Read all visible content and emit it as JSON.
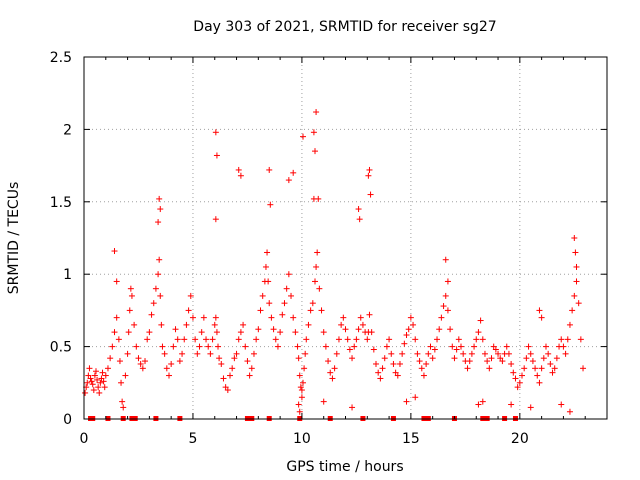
{
  "chart_data": {
    "type": "scatter",
    "title": "Day 303 of 2021, SRMTID for receiver sg27",
    "xlabel": "GPS time / hours",
    "ylabel": "SRMTID / TECUs",
    "xlim": [
      0,
      24
    ],
    "ylim": [
      0,
      2.5
    ],
    "xticks": [
      0,
      5,
      10,
      15,
      20
    ],
    "xtick_labels": [
      "0",
      "5",
      "10",
      "15",
      "20"
    ],
    "yticks": [
      0,
      0.5,
      1,
      1.5,
      2,
      2.5
    ],
    "ytick_labels": [
      "0",
      "0.5",
      "1",
      "1.5",
      "2",
      "2.5"
    ],
    "grid": true,
    "marker": "plus",
    "color": "#ff0000",
    "series": [
      {
        "name": "SRMTID",
        "x": [
          0.05,
          0.1,
          0.15,
          0.2,
          0.25,
          0.3,
          0.35,
          0.4,
          0.45,
          0.5,
          0.55,
          0.6,
          0.65,
          0.7,
          0.75,
          0.8,
          0.85,
          0.9,
          0.95,
          1.0,
          1.1,
          1.2,
          1.3,
          1.4,
          1.5,
          1.6,
          1.65,
          1.7,
          1.75,
          1.8,
          1.9,
          2.0,
          2.05,
          2.1,
          2.15,
          2.2,
          2.3,
          2.4,
          2.5,
          2.6,
          2.7,
          2.8,
          2.9,
          3.0,
          3.1,
          3.2,
          3.3,
          3.4,
          3.45,
          3.5,
          3.55,
          3.6,
          3.7,
          3.8,
          3.9,
          4.0,
          4.1,
          4.2,
          4.3,
          4.4,
          4.5,
          4.6,
          4.7,
          4.8,
          4.9,
          5.0,
          5.1,
          5.2,
          5.3,
          5.4,
          5.5,
          5.6,
          5.7,
          5.8,
          5.9,
          6.0,
          6.05,
          6.1,
          6.15,
          6.2,
          6.3,
          6.4,
          6.5,
          6.6,
          6.7,
          6.8,
          6.9,
          7.0,
          7.1,
          7.2,
          7.3,
          7.4,
          7.5,
          7.6,
          7.7,
          7.8,
          7.9,
          8.0,
          8.1,
          8.2,
          8.3,
          8.35,
          8.4,
          8.45,
          8.5,
          8.6,
          8.7,
          8.8,
          8.9,
          9.0,
          9.1,
          9.2,
          9.3,
          9.4,
          9.5,
          9.6,
          9.7,
          9.8,
          9.85,
          9.9,
          9.95,
          10.0,
          10.05,
          10.1,
          10.15,
          10.2,
          10.3,
          10.4,
          10.5,
          10.6,
          10.65,
          10.7,
          10.8,
          10.9,
          11.0,
          11.1,
          11.2,
          11.3,
          11.4,
          11.5,
          11.6,
          11.7,
          11.8,
          11.9,
          12.0,
          12.1,
          12.2,
          12.3,
          12.4,
          12.5,
          12.6,
          12.7,
          12.8,
          12.9,
          13.0,
          13.05,
          13.1,
          13.2,
          13.3,
          13.4,
          13.5,
          13.6,
          13.7,
          13.8,
          13.9,
          14.0,
          14.1,
          14.2,
          14.3,
          14.4,
          14.5,
          14.6,
          14.7,
          14.8,
          14.9,
          15.0,
          15.1,
          15.2,
          15.3,
          15.4,
          15.5,
          15.6,
          15.7,
          15.8,
          15.9,
          16.0,
          16.1,
          16.2,
          16.3,
          16.4,
          16.5,
          16.6,
          16.7,
          16.8,
          16.9,
          17.0,
          17.1,
          17.2,
          17.3,
          17.4,
          17.5,
          17.6,
          17.7,
          17.8,
          17.9,
          18.0,
          18.1,
          18.2,
          18.3,
          18.4,
          18.5,
          18.6,
          18.7,
          18.8,
          18.9,
          19.0,
          19.1,
          19.2,
          19.3,
          19.4,
          19.5,
          19.6,
          19.7,
          19.8,
          19.9,
          20.0,
          20.1,
          20.2,
          20.3,
          20.4,
          20.5,
          20.6,
          20.7,
          20.8,
          20.9,
          21.0,
          21.1,
          21.2,
          21.3,
          21.4,
          21.5,
          21.6,
          21.7,
          21.8,
          21.9,
          22.0,
          22.1,
          22.2,
          22.3,
          22.4,
          22.5,
          22.6,
          22.7,
          22.8,
          22.9,
          6.05,
          6.1,
          6.05,
          10.05,
          10.55,
          10.6,
          10.55,
          10.65,
          10.75,
          13.05,
          13.1,
          13.15,
          12.6,
          12.65,
          3.45,
          3.5,
          3.4,
          7.1,
          7.2,
          8.5,
          8.55,
          9.4,
          9.6,
          16.6,
          16.7,
          22.5,
          22.55,
          22.6,
          1.4,
          1.5,
          20.9,
          21.0,
          9.85,
          9.9,
          10.0,
          11.0,
          12.3,
          14.8,
          15.2,
          18.1,
          18.3,
          19.6,
          20.5,
          21.9,
          22.3
        ],
        "y": [
          0.18,
          0.22,
          0.25,
          0.3,
          0.35,
          0.28,
          0.26,
          0.24,
          0.2,
          0.3,
          0.33,
          0.27,
          0.22,
          0.18,
          0.25,
          0.28,
          0.32,
          0.26,
          0.22,
          0.3,
          0.35,
          0.42,
          0.5,
          0.6,
          0.7,
          0.55,
          0.4,
          0.25,
          0.12,
          0.08,
          0.3,
          0.45,
          0.6,
          0.75,
          0.9,
          0.85,
          0.65,
          0.5,
          0.42,
          0.38,
          0.35,
          0.4,
          0.55,
          0.6,
          0.72,
          0.8,
          0.9,
          1.0,
          1.1,
          0.85,
          0.65,
          0.5,
          0.45,
          0.35,
          0.3,
          0.38,
          0.5,
          0.62,
          0.55,
          0.4,
          0.45,
          0.55,
          0.65,
          0.75,
          0.85,
          0.7,
          0.55,
          0.45,
          0.5,
          0.6,
          0.7,
          0.55,
          0.5,
          0.45,
          0.55,
          0.65,
          0.7,
          0.6,
          0.5,
          0.42,
          0.38,
          0.28,
          0.22,
          0.2,
          0.3,
          0.35,
          0.42,
          0.45,
          0.55,
          0.6,
          0.65,
          0.5,
          0.4,
          0.3,
          0.35,
          0.45,
          0.55,
          0.62,
          0.75,
          0.85,
          0.95,
          1.05,
          1.15,
          0.95,
          0.8,
          0.7,
          0.62,
          0.55,
          0.5,
          0.6,
          0.72,
          0.8,
          0.9,
          1.0,
          0.85,
          0.7,
          0.6,
          0.5,
          0.42,
          0.3,
          0.22,
          0.15,
          0.25,
          0.35,
          0.45,
          0.55,
          0.65,
          0.75,
          0.8,
          0.95,
          1.05,
          1.15,
          0.9,
          0.75,
          0.6,
          0.5,
          0.4,
          0.32,
          0.28,
          0.35,
          0.45,
          0.55,
          0.65,
          0.7,
          0.62,
          0.55,
          0.48,
          0.42,
          0.5,
          0.55,
          0.62,
          0.7,
          0.65,
          0.6,
          0.55,
          0.6,
          0.72,
          0.6,
          0.48,
          0.38,
          0.32,
          0.28,
          0.35,
          0.42,
          0.5,
          0.55,
          0.45,
          0.38,
          0.32,
          0.3,
          0.38,
          0.45,
          0.52,
          0.58,
          0.62,
          0.7,
          0.65,
          0.55,
          0.45,
          0.4,
          0.35,
          0.3,
          0.38,
          0.45,
          0.5,
          0.42,
          0.48,
          0.55,
          0.62,
          0.7,
          0.78,
          0.85,
          0.75,
          0.62,
          0.5,
          0.42,
          0.48,
          0.55,
          0.5,
          0.45,
          0.4,
          0.35,
          0.4,
          0.45,
          0.5,
          0.55,
          0.6,
          0.68,
          0.55,
          0.45,
          0.4,
          0.35,
          0.42,
          0.5,
          0.48,
          0.45,
          0.42,
          0.4,
          0.45,
          0.5,
          0.45,
          0.38,
          0.32,
          0.28,
          0.22,
          0.25,
          0.3,
          0.35,
          0.42,
          0.5,
          0.45,
          0.4,
          0.35,
          0.3,
          0.25,
          0.35,
          0.42,
          0.5,
          0.45,
          0.38,
          0.32,
          0.35,
          0.42,
          0.5,
          0.55,
          0.5,
          0.45,
          0.55,
          0.65,
          0.75,
          0.85,
          0.95,
          0.8,
          0.55,
          0.35,
          1.38,
          1.82,
          1.98,
          1.95,
          1.52,
          1.85,
          1.98,
          2.12,
          1.52,
          1.68,
          1.72,
          1.55,
          1.45,
          1.38,
          1.52,
          1.45,
          1.36,
          1.72,
          1.68,
          1.72,
          1.48,
          1.65,
          1.7,
          1.1,
          0.95,
          1.25,
          1.15,
          1.05,
          1.16,
          0.95,
          0.75,
          0.7,
          0.1,
          0.05,
          0.2,
          0.12,
          0.08,
          0.12,
          0.15,
          0.1,
          0.12,
          0.1,
          0.08,
          0.1,
          0.05
        ]
      }
    ],
    "data_gap_markers_x": [
      0.3,
      0.4,
      1.1,
      1.8,
      2.2,
      2.35,
      3.3,
      4.4,
      7.5,
      7.6,
      7.7,
      8.5,
      9.9,
      11.3,
      12.8,
      14.2,
      15.6,
      15.7,
      15.8,
      17.0,
      18.3,
      18.4,
      18.5,
      19.3,
      19.8
    ]
  }
}
